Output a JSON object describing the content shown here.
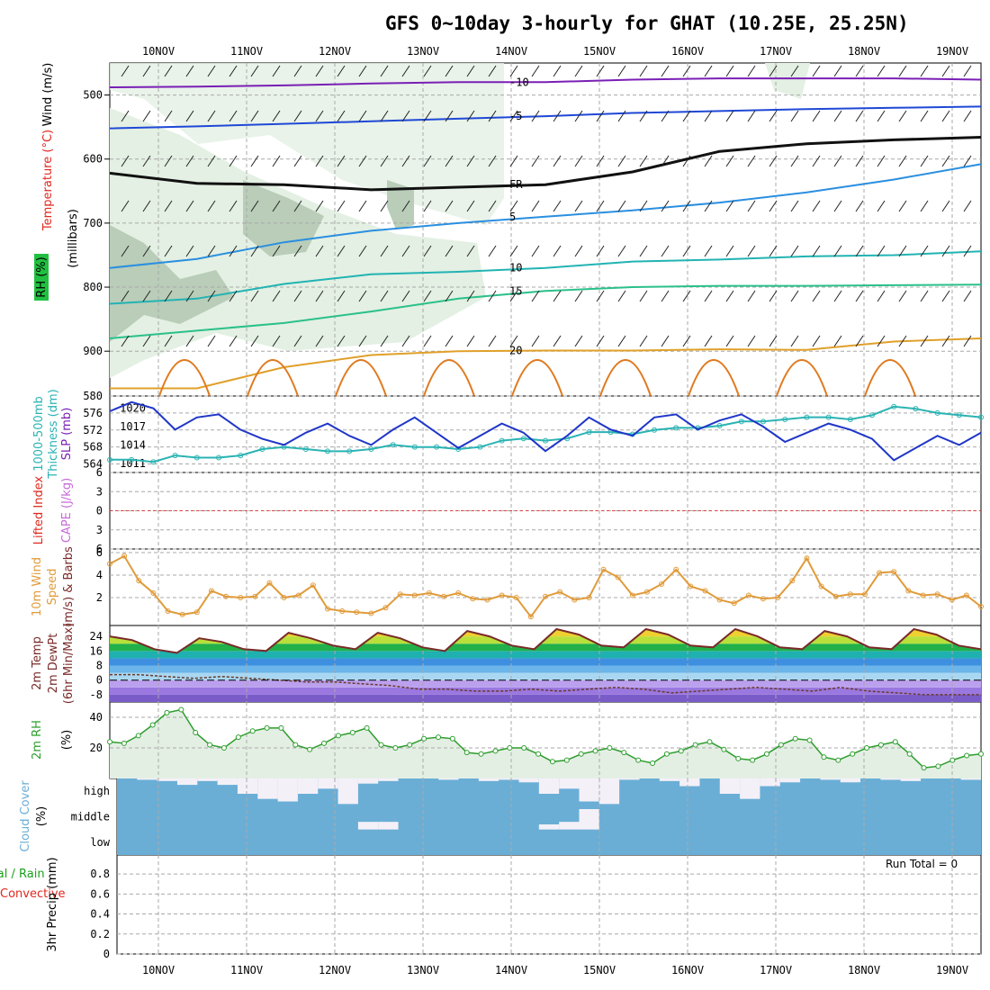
{
  "title": "GFS 0~10day 3-hourly for GHAT (10.25E, 25.25N)",
  "dates": [
    "10NOV",
    "11NOV",
    "12NOV",
    "13NOV",
    "14NOV",
    "15NOV",
    "16NOV",
    "17NOV",
    "18NOV",
    "19NOV"
  ],
  "colors": {
    "grid": "#a9a9a9",
    "rh_fill": "#e3f0e3",
    "rh_dark": "#b9cdb9",
    "slp": "#1f36c8",
    "thick": "#2ab3b3",
    "wind": "#e09b3a",
    "cloud": "#6aaed6",
    "rh2m": "#2e9e2e",
    "precip_total": "#1aa01a",
    "precip_conv": "#e0281e"
  },
  "chart_data": [
    {
      "name": "upper-air",
      "type": "contour",
      "ylabel": [
        "Wind (m/s)",
        "Temperature (°C)",
        "(millibars)",
        "RH (%)"
      ],
      "ylim": [
        970,
        450
      ],
      "y_ticks": [
        500,
        600,
        700,
        800,
        900
      ],
      "temperature_contours": [
        {
          "level": -10,
          "label": "-10",
          "pressure": [
            488,
            487,
            485,
            482,
            480,
            480,
            476,
            474,
            474,
            474,
            476
          ]
        },
        {
          "level": -5,
          "label": "-5",
          "pressure": [
            552,
            549,
            545,
            541,
            537,
            533,
            528,
            525,
            522,
            520,
            518
          ]
        },
        {
          "level": 0,
          "label": "FR",
          "pressure": [
            622,
            638,
            640,
            648,
            644,
            640,
            620,
            588,
            576,
            570,
            566
          ]
        },
        {
          "level": 5,
          "label": "5",
          "pressure": [
            770,
            756,
            730,
            712,
            700,
            690,
            680,
            668,
            652,
            632,
            608
          ]
        },
        {
          "level": 10,
          "label": "10",
          "pressure": [
            826,
            818,
            795,
            780,
            776,
            770,
            760,
            757,
            752,
            750,
            744
          ]
        },
        {
          "level": 15,
          "label": "15",
          "pressure": [
            880,
            868,
            856,
            838,
            818,
            806,
            800,
            798,
            798,
            797,
            796
          ]
        },
        {
          "level": 20,
          "label": "20",
          "pressure": [
            958,
            958,
            925,
            906,
            900,
            899,
            899,
            897,
            898,
            885,
            880
          ]
        }
      ]
    },
    {
      "name": "thickness-slp",
      "type": "line",
      "ylabel": [
        "1000-500mb",
        "Thickness (dm)",
        "SLP (mb)"
      ],
      "left_ticks": [
        "564",
        "568",
        "572",
        "576",
        "580"
      ],
      "right_ticks": [
        "1011",
        "1014",
        "1017",
        "1020"
      ],
      "slp": [
        1019.5,
        1021,
        1020,
        1016.5,
        1018.5,
        1019,
        1016.5,
        1015,
        1014,
        1016,
        1017.5,
        1015.5,
        1014,
        1016.5,
        1018.5,
        1016,
        1013.5,
        1015.5,
        1017.5,
        1016,
        1013,
        1015.5,
        1018.5,
        1016.5,
        1015.5,
        1018.5,
        1019,
        1016.5,
        1018,
        1019,
        1017,
        1014.5,
        1016,
        1017.5,
        1016.5,
        1015,
        1011.5,
        1013.5,
        1015.5,
        1014,
        1016
      ],
      "thickness": [
        565,
        565,
        564.5,
        566,
        565.5,
        565.5,
        566,
        567.5,
        568,
        567.5,
        567,
        567,
        567.5,
        568.5,
        568,
        568,
        567.5,
        568,
        569.5,
        570,
        569.5,
        570,
        571.5,
        571.5,
        571,
        572,
        572.5,
        572.5,
        573,
        574,
        574,
        574.5,
        575,
        575,
        574.5,
        575.5,
        577.5,
        577,
        576,
        575.5,
        575
      ]
    },
    {
      "name": "cape-lifted",
      "type": "line",
      "ylabel": [
        "Lifted Index",
        "CAPE (J/kg)"
      ],
      "ticks": [
        "6",
        "3",
        "0",
        "-3",
        "-6"
      ]
    },
    {
      "name": "wind10m",
      "type": "line",
      "ylabel": [
        "10m Wind",
        "Speed",
        "(m/s) & Barbs"
      ],
      "ticks": [
        "2",
        "4",
        "6"
      ],
      "ylim": [
        0,
        6
      ],
      "speed": [
        5,
        5.7,
        3.5,
        2.4,
        0.8,
        0.5,
        0.7,
        2.6,
        2.1,
        2.0,
        2.1,
        3.3,
        2.0,
        2.2,
        3.1,
        1.0,
        0.8,
        0.7,
        0.6,
        1.1,
        2.3,
        2.2,
        2.4,
        2.1,
        2.4,
        1.9,
        1.8,
        2.2,
        2.0,
        0.3,
        2.1,
        2.5,
        1.8,
        2.0,
        4.5,
        3.8,
        2.2,
        2.5,
        3.2,
        4.5,
        3.0,
        2.6,
        1.8,
        1.5,
        2.2,
        1.9,
        2.0,
        3.5,
        5.5,
        3.0,
        2.1,
        2.3,
        2.3,
        4.2,
        4.3,
        2.6,
        2.2,
        2.3,
        1.8,
        2.2,
        1.2
      ]
    },
    {
      "name": "temp2m",
      "type": "area",
      "ylabel": [
        "2m Temp",
        "2m DewPt",
        "(6hr Min/Max)"
      ],
      "ticks": [
        "-8",
        "0",
        "8",
        "16",
        "24"
      ],
      "ylim": [
        -12,
        30
      ],
      "temp": [
        24,
        22,
        17,
        15,
        23,
        21,
        17,
        16,
        26,
        23,
        19,
        17,
        26,
        23,
        18,
        16,
        27,
        24,
        19,
        17,
        28,
        25,
        19,
        18,
        28,
        25,
        19,
        18,
        28,
        24,
        18,
        17,
        27,
        24,
        18,
        17,
        28,
        25,
        19,
        17
      ],
      "dewpoint": [
        3,
        3,
        2,
        1,
        2,
        1,
        0,
        -1,
        -1,
        -2,
        -3,
        -5,
        -5,
        -6,
        -6,
        -5,
        -6,
        -5,
        -4,
        -5,
        -7,
        -6,
        -5,
        -4,
        -5,
        -6,
        -4,
        -6,
        -7,
        -8,
        -8,
        -8
      ]
    },
    {
      "name": "rh2m",
      "type": "area",
      "ylabel": [
        "2m RH",
        "(%)"
      ],
      "ticks": [
        "20",
        "40"
      ],
      "ylim": [
        0,
        50
      ],
      "rh": [
        24,
        23,
        28,
        35,
        43,
        45,
        30,
        22,
        20,
        27,
        31,
        33,
        33,
        22,
        19,
        23,
        28,
        30,
        33,
        22,
        20,
        22,
        26,
        27,
        26,
        17,
        16,
        18,
        20,
        20,
        16,
        11,
        12,
        16,
        18,
        20,
        17,
        12,
        10,
        16,
        18,
        22,
        24,
        19,
        13,
        12,
        16,
        22,
        26,
        25,
        14,
        12,
        16,
        20,
        22,
        24,
        16,
        7,
        8,
        12,
        15,
        16
      ]
    },
    {
      "name": "cloud-cover",
      "type": "bar",
      "ylabel": [
        "Cloud Cover",
        "(%)"
      ],
      "levels": [
        "high",
        "middle",
        "low"
      ],
      "high": [
        0,
        5,
        10,
        25,
        10,
        25,
        60,
        80,
        90,
        60,
        40,
        100,
        20,
        10,
        0,
        0,
        5,
        0,
        10,
        5,
        15,
        60,
        40,
        90,
        100,
        5,
        0,
        10,
        30,
        0,
        60,
        80,
        30,
        15,
        0,
        5,
        15,
        0,
        5,
        10,
        0,
        0,
        5
      ],
      "middle": [
        0,
        0,
        0,
        0,
        0,
        0,
        0,
        0,
        0,
        0,
        0,
        0,
        30,
        30,
        0,
        0,
        0,
        0,
        0,
        0,
        0,
        20,
        30,
        80,
        0,
        0,
        0,
        0,
        0,
        0,
        0,
        0,
        0,
        0,
        0,
        0,
        0,
        0,
        0,
        0,
        0,
        0,
        0
      ]
    },
    {
      "name": "precip",
      "type": "bar",
      "ylabel": [
        "Total / Rain",
        "Convective",
        "3hr Precip (mm)"
      ],
      "ticks": [
        "0",
        "0.2",
        "0.4",
        "0.6",
        "0.8"
      ],
      "run_total": "Run Total = 0",
      "values": []
    }
  ]
}
